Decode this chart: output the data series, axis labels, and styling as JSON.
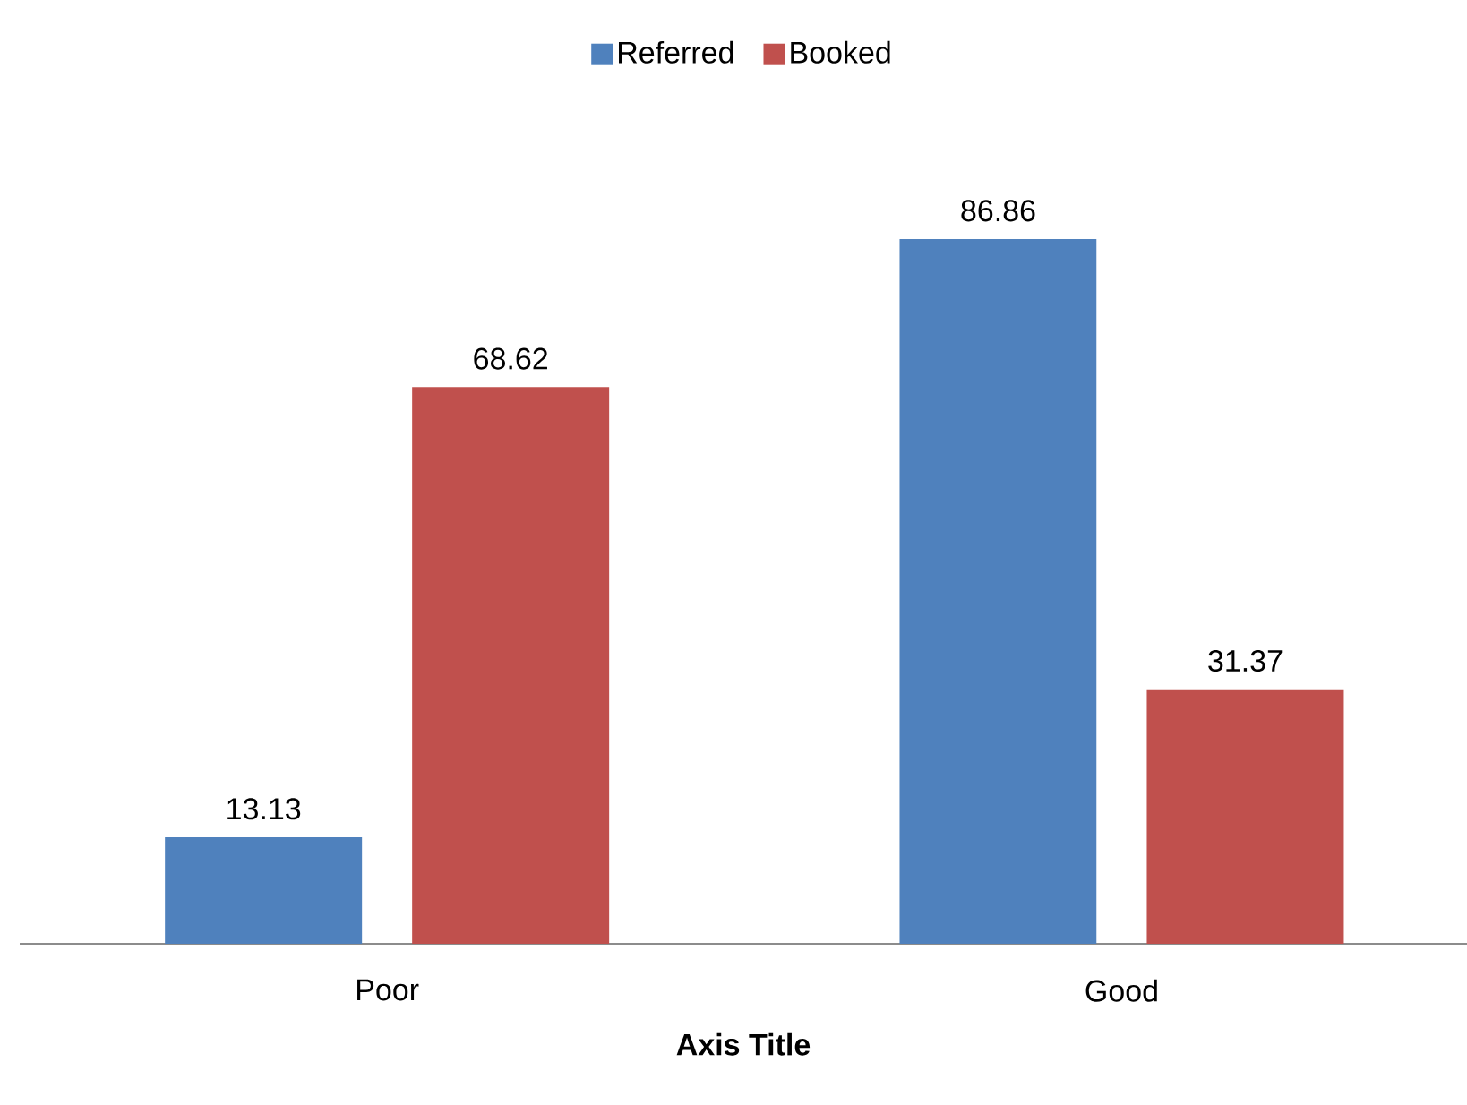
{
  "chart_data": {
    "type": "bar",
    "xlabel": "Axis Title",
    "categories": [
      "Poor",
      "Good"
    ],
    "series": [
      {
        "name": "Referred",
        "color": "#4f81bd",
        "values": [
          13.13,
          86.86
        ]
      },
      {
        "name": "Booked",
        "color": "#c0504d",
        "values": [
          68.62,
          31.37
        ]
      }
    ],
    "data_labels": true,
    "legend": "top"
  }
}
